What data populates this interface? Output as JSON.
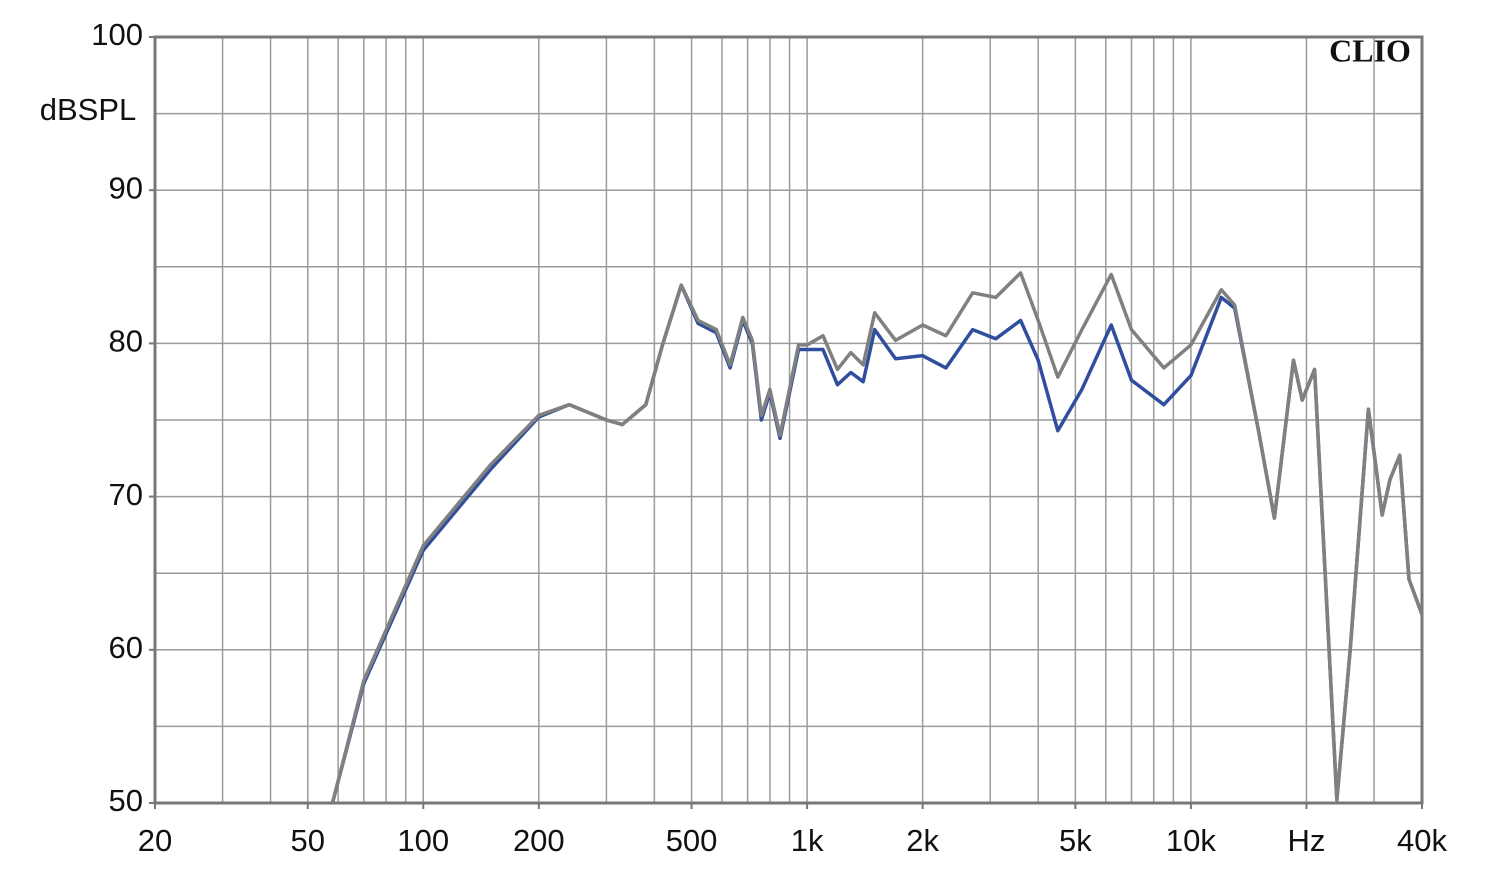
{
  "chart_data": {
    "type": "line",
    "brand": "CLIO",
    "y_label": "dBSPL",
    "log_x": true,
    "xlim": [
      20,
      40000
    ],
    "ylim": [
      50,
      100
    ],
    "xticks": [
      20,
      50,
      100,
      200,
      500,
      {
        "value": 1000,
        "label": "1k"
      },
      {
        "value": 2000,
        "label": "2k"
      },
      {
        "value": 5000,
        "label": "5k"
      },
      {
        "value": 10000,
        "label": "10k"
      },
      {
        "value": 20000,
        "label": "Hz"
      },
      {
        "value": 40000,
        "label": "40k"
      }
    ],
    "yticks": [
      50,
      60,
      70,
      80,
      90,
      100
    ],
    "xgrid": [
      20,
      30,
      40,
      50,
      60,
      70,
      80,
      90,
      100,
      200,
      300,
      400,
      500,
      600,
      700,
      800,
      900,
      1000,
      2000,
      3000,
      4000,
      5000,
      6000,
      7000,
      8000,
      9000,
      10000,
      20000,
      30000,
      40000
    ],
    "ygrid": [
      50,
      55,
      60,
      65,
      70,
      75,
      80,
      85,
      90,
      95,
      100
    ],
    "x": [
      58,
      70,
      100,
      150,
      200,
      240,
      300,
      330,
      380,
      420,
      470,
      520,
      580,
      630,
      680,
      720,
      760,
      800,
      850,
      950,
      1000,
      1100,
      1200,
      1300,
      1400,
      1500,
      1700,
      2000,
      2300,
      2700,
      3100,
      3600,
      4000,
      4500,
      5200,
      6200,
      7000,
      8500,
      10000,
      12000,
      13000,
      15000,
      16500,
      18500,
      19500,
      21000,
      24000,
      26000,
      29000,
      31500,
      33000,
      35000,
      37000,
      40000
    ],
    "series": [
      {
        "color": "#2f4f9e",
        "values": [
          50,
          57.8,
          66.5,
          71.8,
          75.2,
          76.0,
          75.0,
          74.7,
          76.0,
          79.9,
          83.8,
          81.3,
          80.7,
          78.4,
          81.5,
          80.0,
          75.0,
          76.8,
          73.8,
          79.6,
          79.6,
          79.6,
          77.3,
          78.1,
          77.5,
          80.9,
          79.0,
          79.2,
          78.4,
          80.9,
          80.3,
          81.5,
          78.9,
          74.3,
          77.0,
          81.2,
          77.6,
          76.0,
          77.9,
          83.0,
          82.3,
          74.3,
          68.6,
          78.9,
          76.3,
          78.3,
          50.2,
          60.0,
          75.7,
          68.8,
          71.1,
          72.7,
          64.6,
          62.3
        ]
      },
      {
        "color": "#808080",
        "values": [
          50,
          58.0,
          66.8,
          72.1,
          75.3,
          76.0,
          75.0,
          74.7,
          76.0,
          79.9,
          83.8,
          81.5,
          80.9,
          78.6,
          81.7,
          80.2,
          75.3,
          77.0,
          74.0,
          79.9,
          79.9,
          80.5,
          78.3,
          79.4,
          78.6,
          82.0,
          80.2,
          81.2,
          80.5,
          83.3,
          83.0,
          84.6,
          81.5,
          77.8,
          80.9,
          84.5,
          80.9,
          78.4,
          79.9,
          83.5,
          82.5,
          74.3,
          68.6,
          78.9,
          76.3,
          78.3,
          50.2,
          60.0,
          75.7,
          68.8,
          71.1,
          72.7,
          64.6,
          62.3
        ]
      }
    ]
  }
}
